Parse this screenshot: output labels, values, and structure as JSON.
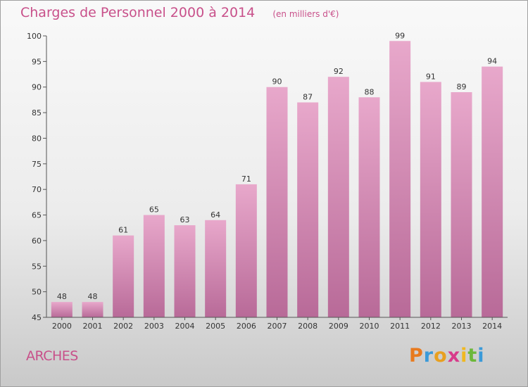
{
  "chart_data": {
    "type": "bar",
    "title": "Charges de Personnel 2000 à 2014",
    "subtitle": "(en milliers d'€)",
    "categories": [
      "2000",
      "2001",
      "2002",
      "2003",
      "2004",
      "2005",
      "2006",
      "2007",
      "2008",
      "2009",
      "2010",
      "2011",
      "2012",
      "2013",
      "2014"
    ],
    "values": [
      48,
      48,
      61,
      65,
      63,
      64,
      71,
      90,
      87,
      92,
      88,
      99,
      91,
      89,
      94
    ],
    "ylim": [
      45,
      100
    ],
    "yticks": [
      45,
      50,
      55,
      60,
      65,
      70,
      75,
      80,
      85,
      90,
      95,
      100
    ],
    "xlabel": "",
    "ylabel": "",
    "grid": false,
    "bar_color_top": "#e8a8cb",
    "bar_color_bottom": "#b86a98"
  },
  "footer": {
    "commune": "ARCHES",
    "logo_text": "Proxiti"
  },
  "colors": {
    "accent": "#c8508a",
    "logo": [
      "#e87a1e",
      "#3a9ad9",
      "#e8a020",
      "#d83a8a",
      "#f0b820",
      "#6cb83a",
      "#3a9ad9"
    ]
  }
}
